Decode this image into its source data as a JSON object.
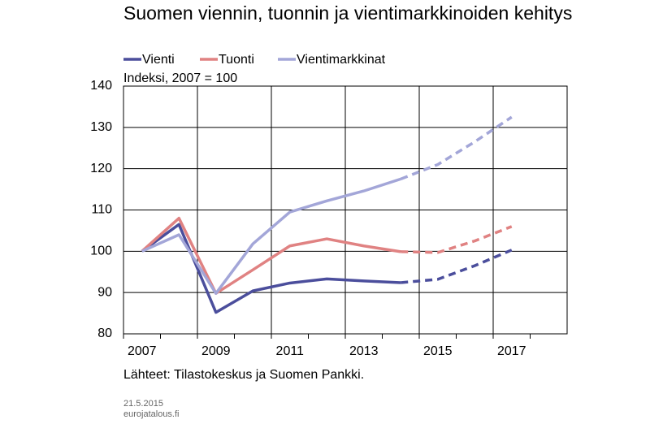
{
  "chart_data": {
    "type": "line",
    "title": "Suomen viennin, tuonnin ja vientimarkkinoiden kehitys",
    "subtitle": "Indeksi, 2007 = 100",
    "source": "Lähteet: Tilastokeskus ja Suomen Pankki.",
    "date": "21.5.2015",
    "site": "eurojatalous.fi",
    "x": [
      2007,
      2008,
      2009,
      2010,
      2011,
      2012,
      2013,
      2014,
      2015,
      2016,
      2017
    ],
    "series": [
      {
        "name": "Vienti",
        "color": "#4b4e9c",
        "values": [
          100,
          106.5,
          85.2,
          90.4,
          92.3,
          93.3,
          92.8,
          92.4,
          93.2,
          96.5,
          100.3
        ]
      },
      {
        "name": "Tuonti",
        "color": "#e08282",
        "values": [
          100,
          108,
          89.8,
          95.5,
          101.3,
          103,
          101.3,
          99.9,
          99.7,
          102.5,
          106
        ]
      },
      {
        "name": "Vientimarkkinat",
        "color": "#a3a6d8",
        "values": [
          100,
          104,
          89.8,
          101.8,
          109.5,
          112.2,
          114.6,
          117.5,
          121,
          126.5,
          132.5
        ]
      }
    ],
    "dashed_from": 2014,
    "xlim": [
      2006.5,
      2018.5
    ],
    "xticks": [
      2007,
      2009,
      2011,
      2013,
      2015,
      2017
    ],
    "ylim": [
      80,
      140
    ],
    "yticks": [
      80,
      90,
      100,
      110,
      120,
      130,
      140
    ],
    "grid": true
  }
}
